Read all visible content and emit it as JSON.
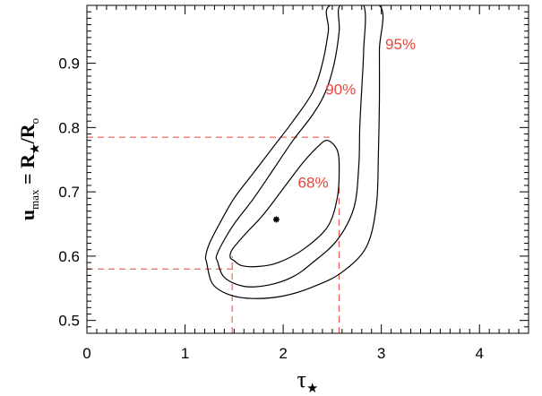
{
  "chart_data": {
    "type": "contour",
    "xlabel": {
      "main": "τ",
      "sub": "★"
    },
    "ylabel": {
      "u": "u",
      "u_sub": "max",
      "eq": " = R",
      "r_sub": "★",
      "slash": "/R",
      "o_sub": "o"
    },
    "xlim": [
      0,
      4.5
    ],
    "ylim": [
      0.48,
      0.99
    ],
    "x_ticks": [
      0,
      1,
      2,
      3,
      4
    ],
    "y_ticks": [
      0.5,
      0.6,
      0.7,
      0.8,
      0.9
    ],
    "x_ticks_labels": [
      "0",
      "1",
      "2",
      "3",
      "4"
    ],
    "y_ticks_labels": [
      "0.5",
      "0.6",
      "0.7",
      "0.8",
      "0.9"
    ],
    "best_fit": {
      "x": 1.93,
      "y": 0.657
    },
    "contours": [
      {
        "name": "68%",
        "label": "68%",
        "label_pos": {
          "x": 2.15,
          "y": 0.715
        },
        "points": [
          [
            1.5,
            0.593
          ],
          [
            1.58,
            0.585
          ],
          [
            1.75,
            0.584
          ],
          [
            1.95,
            0.59
          ],
          [
            2.2,
            0.61
          ],
          [
            2.45,
            0.645
          ],
          [
            2.55,
            0.69
          ],
          [
            2.57,
            0.735
          ],
          [
            2.55,
            0.765
          ],
          [
            2.45,
            0.78
          ],
          [
            2.35,
            0.77
          ],
          [
            2.2,
            0.745
          ],
          [
            2.0,
            0.705
          ],
          [
            1.8,
            0.665
          ],
          [
            1.6,
            0.632
          ],
          [
            1.48,
            0.61
          ],
          [
            1.46,
            0.598
          ]
        ]
      },
      {
        "name": "90%",
        "label": "90%",
        "label_pos": {
          "x": 2.43,
          "y": 0.86
        },
        "points": [
          [
            1.33,
            0.592
          ],
          [
            1.4,
            0.567
          ],
          [
            1.6,
            0.553
          ],
          [
            1.85,
            0.555
          ],
          [
            2.1,
            0.568
          ],
          [
            2.3,
            0.59
          ],
          [
            2.55,
            0.625
          ],
          [
            2.72,
            0.675
          ],
          [
            2.77,
            0.74
          ],
          [
            2.78,
            0.8
          ],
          [
            2.8,
            0.86
          ],
          [
            2.82,
            0.92
          ],
          [
            2.82,
            0.99
          ],
          [
            2.58,
            0.99
          ],
          [
            2.57,
            0.95
          ],
          [
            2.52,
            0.9
          ],
          [
            2.43,
            0.855
          ],
          [
            2.3,
            0.82
          ],
          [
            2.1,
            0.78
          ],
          [
            1.9,
            0.735
          ],
          [
            1.7,
            0.69
          ],
          [
            1.5,
            0.65
          ],
          [
            1.38,
            0.62
          ],
          [
            1.32,
            0.6
          ]
        ]
      },
      {
        "name": "95%",
        "label": "95%",
        "label_pos": {
          "x": 3.04,
          "y": 0.93
        },
        "points": [
          [
            1.22,
            0.59
          ],
          [
            1.28,
            0.557
          ],
          [
            1.45,
            0.54
          ],
          [
            1.7,
            0.534
          ],
          [
            2.0,
            0.538
          ],
          [
            2.3,
            0.552
          ],
          [
            2.6,
            0.575
          ],
          [
            2.85,
            0.615
          ],
          [
            2.95,
            0.68
          ],
          [
            2.97,
            0.76
          ],
          [
            2.98,
            0.84
          ],
          [
            2.98,
            0.92
          ],
          [
            2.98,
            0.99
          ],
          [
            2.48,
            0.99
          ],
          [
            2.46,
            0.95
          ],
          [
            2.4,
            0.9
          ],
          [
            2.3,
            0.855
          ],
          [
            2.1,
            0.81
          ],
          [
            1.9,
            0.77
          ],
          [
            1.7,
            0.73
          ],
          [
            1.5,
            0.69
          ],
          [
            1.35,
            0.65
          ],
          [
            1.25,
            0.62
          ],
          [
            1.21,
            0.6
          ]
        ]
      }
    ],
    "reference_lines": [
      {
        "kind": "h",
        "y": 0.785,
        "x_from": 0,
        "x_to": 2.47
      },
      {
        "kind": "h",
        "y": 0.58,
        "x_from": 0,
        "x_to": 1.5
      },
      {
        "kind": "v",
        "x": 1.48,
        "y_from": 0.48,
        "y_to": 0.6
      },
      {
        "kind": "v",
        "x": 2.57,
        "y_from": 0.48,
        "y_to": 0.75
      }
    ],
    "colors": {
      "contour": "#000000",
      "reference": "#e8463a",
      "label": "#e8463a"
    }
  }
}
